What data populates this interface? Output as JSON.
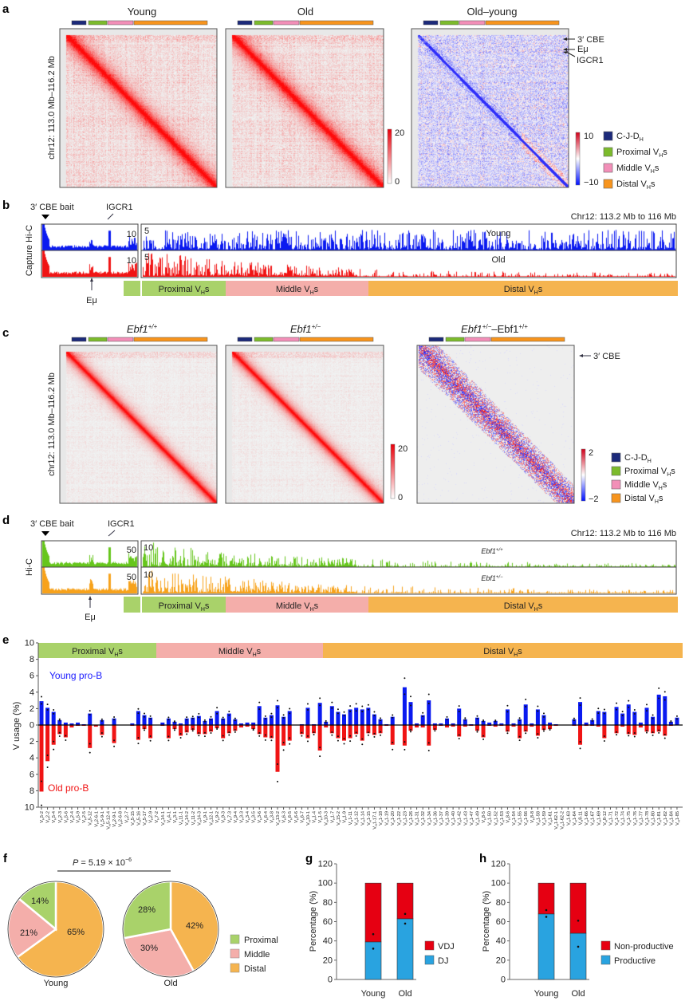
{
  "colors": {
    "cjdh": "#1c2a7a",
    "proximal_bar": "#7cbb2c",
    "middle_bar": "#f28fb8",
    "distal_bar": "#f7941d",
    "proximal_region": "#a9d26a",
    "middle_region": "#f4aeaa",
    "distal_region": "#f5b44f",
    "young": "#0a1af0",
    "old": "#f01414",
    "ebf_wt": "#66c61c",
    "ebf_het": "#f7a21b",
    "vdj": "#e60012",
    "dj": "#29a3e0"
  },
  "panel_a": {
    "label": "a",
    "titles": [
      "Young",
      "Old",
      "Old–young"
    ],
    "ylabel": "chr12: 113.0 Mb–116.2 Mb",
    "colorbar": {
      "max": "20",
      "min": "0"
    },
    "diff_colorbar": {
      "max": "10",
      "min": "−10"
    },
    "annotations": [
      "3′ CBE",
      "Eμ",
      "IGCR1"
    ],
    "legend": [
      {
        "base": "C-J-D",
        "sub": "H",
        "post": ""
      },
      {
        "base": "Proximal V",
        "sub": "H",
        "post": "s"
      },
      {
        "base": "Middle V",
        "sub": "H",
        "post": "s"
      },
      {
        "base": "Distal V",
        "sub": "H",
        "post": "s"
      }
    ]
  },
  "panel_b": {
    "label": "b",
    "bait": "3′ CBE bait",
    "igcr1": "IGCR1",
    "emu": "Eμ",
    "region": "Chr12: 113.2 Mb to 116 Mb",
    "ylabel": "Capture Hi-C",
    "tracks": [
      {
        "name": "Young",
        "bait_scale": "10",
        "scale": "5"
      },
      {
        "name": "Old",
        "bait_scale": "10",
        "scale": "5"
      }
    ],
    "regions": [
      {
        "base": "Proximal V",
        "sub": "H",
        "post": "s"
      },
      {
        "base": "Middle V",
        "sub": "H",
        "post": "s"
      },
      {
        "base": "Distal V",
        "sub": "H",
        "post": "s"
      }
    ]
  },
  "panel_c": {
    "label": "c",
    "titles": [
      {
        "base": "Ebf1",
        "sup": "+/+"
      },
      {
        "base": "Ebf1",
        "sup": "+/−"
      },
      {
        "base": "Ebf1",
        "sup": "+/−",
        "mid": "–Ebf1",
        "sup2": "+/+"
      }
    ],
    "ylabel": "chr12: 113.0 Mb–116.2 Mb",
    "colorbar": {
      "max": "20",
      "min": "0"
    },
    "diff_colorbar": {
      "max": "2",
      "min": "−2"
    },
    "annotation": "3′ CBE",
    "legend": [
      {
        "base": "C-J-D",
        "sub": "H",
        "post": ""
      },
      {
        "base": "Proximal V",
        "sub": "H",
        "post": "s"
      },
      {
        "base": "Middle V",
        "sub": "H",
        "post": "s"
      },
      {
        "base": "Distal V",
        "sub": "H",
        "post": "s"
      }
    ]
  },
  "panel_d": {
    "label": "d",
    "bait": "3′ CBE bait",
    "igcr1": "IGCR1",
    "emu": "Eμ",
    "region": "Chr12: 113.2 Mb to 116 Mb",
    "ylabel": "Hi-C",
    "tracks": [
      {
        "base": "Ebf1",
        "sup": "+/+",
        "bait_scale": "50",
        "scale": "10"
      },
      {
        "base": "Ebf1",
        "sup": "+/−",
        "bait_scale": "50",
        "scale": "10"
      }
    ],
    "regions": [
      {
        "base": "Proximal V",
        "sub": "H",
        "post": "s"
      },
      {
        "base": "Middle V",
        "sub": "H",
        "post": "s"
      },
      {
        "base": "Distal V",
        "sub": "H",
        "post": "s"
      }
    ]
  },
  "chart_data": [
    {
      "panel": "e",
      "label": "e",
      "type": "bar",
      "ylabel": "V usage (%)",
      "ylim": [
        -10,
        10
      ],
      "yticks": [
        "10",
        "8",
        "6",
        "4",
        "2",
        "0",
        "2",
        "4",
        "6",
        "8",
        "10"
      ],
      "regions": [
        {
          "base": "Proximal V",
          "sub": "H",
          "post": "s",
          "count": 25
        },
        {
          "base": "Middle V",
          "sub": "H",
          "post": "s",
          "count": 28
        },
        {
          "base": "Distal V",
          "sub": "H",
          "post": "s",
          "count": 53
        }
      ],
      "x_prefix": {
        "base": "V",
        "sub": "H"
      },
      "categories": [
        "5-2",
        "2-2",
        "5-4",
        "2-3",
        "5-6",
        "2-4",
        "5-9",
        "2-5",
        "5-12",
        "2-6-1",
        "5-9-1",
        "5-12-4",
        "2-9-1",
        "2-6-8",
        "2-7",
        "5-15",
        "5-16",
        "5-17",
        "2-9",
        "7-2",
        "14-1",
        "4-1",
        "3-1",
        "11-1",
        "14-2",
        "11-2",
        "14-3",
        "9-1",
        "12-1",
        "9-2",
        "9-3",
        "7-3",
        "9-4",
        "3-3",
        "3-4",
        "3-5",
        "3-6",
        "6-4",
        "3-8",
        "13-2",
        "6-3",
        "6-5",
        "6-6",
        "6-7",
        "10-1",
        "1-4",
        "1-5",
        "10-3",
        "1-7",
        "15-2",
        "1-9",
        "1-11",
        "1-12",
        "1-14",
        "1-15",
        "1-17-1",
        "1-18",
        "1-19",
        "1-20",
        "1-22",
        "1-23",
        "1-26",
        "1-31",
        "1-32",
        "1-34",
        "1-36",
        "1-37",
        "1-39",
        "1-40",
        "1-42",
        "1-43",
        "1-47",
        "1-49",
        "8-5",
        "1-50",
        "1-52",
        "1-53",
        "8-6",
        "1-54",
        "1-55",
        "1-56",
        "8-8",
        "1-58",
        "1-59",
        "1-61",
        "1-62-1",
        "1-62-2",
        "1-63",
        "1-64",
        "8-11",
        "1-66",
        "1-67",
        "1-69",
        "8-12",
        "1-71",
        "1-72",
        "1-74",
        "1-75",
        "1-76",
        "1-77",
        "1-78",
        "1-80",
        "1-81",
        "1-82",
        "1-84",
        "1-85"
      ],
      "series": [
        {
          "name": "Young pro-B",
          "direction": "up",
          "values": [
            2.9,
            2.1,
            1.6,
            0.6,
            0.3,
            0.2,
            0.3,
            0.1,
            1.4,
            0,
            0.6,
            0,
            0.8,
            0,
            0,
            0.2,
            1.7,
            1.2,
            0.9,
            0,
            0.3,
            0.8,
            0.4,
            0.2,
            0.8,
            0.9,
            1.1,
            0.5,
            0.8,
            1.7,
            0.8,
            1.4,
            0.7,
            0.2,
            0.3,
            0.3,
            2.3,
            0.9,
            1.2,
            2.4,
            1.0,
            1.7,
            0,
            0.1,
            2.1,
            0.1,
            2.7,
            0.4,
            2.3,
            1.6,
            1.3,
            1.9,
            2.1,
            1.9,
            2.1,
            1.3,
            0.7,
            0.1,
            1.0,
            0,
            4.6,
            2.8,
            0.2,
            1.2,
            3.0,
            0.2,
            0.2,
            0.8,
            0.2,
            2.0,
            0.7,
            0.1,
            0.9,
            0.5,
            0.3,
            0.5,
            0.2,
            1.9,
            0.2,
            0.7,
            2.5,
            0.2,
            1.9,
            1.2,
            0.3,
            0.1,
            0,
            0,
            0.7,
            2.8,
            0.3,
            0.6,
            1.7,
            1.6,
            0,
            2.2,
            1.4,
            2.5,
            1.6,
            0.3,
            2.1,
            1.0,
            3.7,
            3.5,
            0.4,
            0.9
          ]
        },
        {
          "name": "Old pro-B",
          "direction": "down",
          "values": [
            8.1,
            4.4,
            2.4,
            1.1,
            1.5,
            0.3,
            0.1,
            0.1,
            2.8,
            0.2,
            1.2,
            0,
            2.2,
            0,
            0,
            0.1,
            1.8,
            0.5,
            1.6,
            0,
            0.1,
            1.6,
            0.5,
            1.3,
            0.9,
            0.6,
            1.1,
            1.1,
            0.8,
            0.4,
            1.6,
            1.0,
            0.7,
            0.3,
            0.2,
            0.5,
            1.1,
            1.5,
            1.6,
            5.7,
            2.5,
            1.9,
            0,
            1.1,
            1.6,
            1.0,
            3.1,
            0.3,
            1.0,
            1.6,
            1.9,
            1.6,
            1.1,
            1.9,
            1.0,
            1.2,
            1.0,
            0.1,
            2.4,
            0,
            2.5,
            0.7,
            0.3,
            0.3,
            2.5,
            0.6,
            0.1,
            0.3,
            0.2,
            1.4,
            0.2,
            0.1,
            0.7,
            1.5,
            0.1,
            0.2,
            0.1,
            0.8,
            0.2,
            1.6,
            0.8,
            0.2,
            1.3,
            0.6,
            0.5,
            0.1,
            0,
            0,
            0.1,
            2.4,
            0.1,
            0.1,
            0.2,
            1.6,
            0,
            1.0,
            0.2,
            1.1,
            1.2,
            0.3,
            0.8,
            1.0,
            0.8,
            1.3,
            0.1,
            0
          ]
        }
      ]
    },
    {
      "panel": "f",
      "label": "f",
      "type": "pie",
      "pvalue": {
        "prefix": "P",
        "text": " = 5.19 × 10",
        "exp": "−6"
      },
      "legend": [
        "Proximal",
        "Middle",
        "Distal"
      ],
      "pies": [
        {
          "name": "Young",
          "values": [
            14,
            21,
            65
          ],
          "labels": [
            "14%",
            "21%",
            "65%"
          ]
        },
        {
          "name": "Old",
          "values": [
            28,
            30,
            42
          ],
          "labels": [
            "28%",
            "30%",
            "42%"
          ]
        }
      ]
    },
    {
      "panel": "g",
      "label": "g",
      "type": "bar",
      "stacked": true,
      "ylabel": "Percentage (%)",
      "ylim": [
        0,
        120
      ],
      "yticks": [
        "0",
        "20",
        "40",
        "60",
        "80",
        "100",
        "120"
      ],
      "categories": [
        "Young",
        "Old"
      ],
      "series": [
        {
          "name": "DJ",
          "values": [
            39,
            63
          ],
          "points": [
            [
              32
            ],
            [
              58
            ]
          ]
        },
        {
          "name": "VDJ",
          "values": [
            61,
            37
          ],
          "points": [
            [
              47
            ],
            [
              68
            ]
          ]
        }
      ],
      "legend": [
        "VDJ",
        "DJ"
      ]
    },
    {
      "panel": "h",
      "label": "h",
      "type": "bar",
      "stacked": true,
      "ylabel": "Percentage (%)",
      "ylim": [
        0,
        120
      ],
      "yticks": [
        "0",
        "20",
        "40",
        "60",
        "80",
        "100",
        "120"
      ],
      "categories": [
        "Young",
        "Old"
      ],
      "series": [
        {
          "name": "Productive",
          "values": [
            68,
            48
          ],
          "points": [
            [
              65
            ],
            [
              34
            ]
          ]
        },
        {
          "name": "Non-productive",
          "values": [
            32,
            52
          ],
          "points": [
            [
              72
            ],
            [
              61
            ]
          ]
        }
      ],
      "legend": [
        "Non-productive",
        "Productive"
      ]
    }
  ]
}
